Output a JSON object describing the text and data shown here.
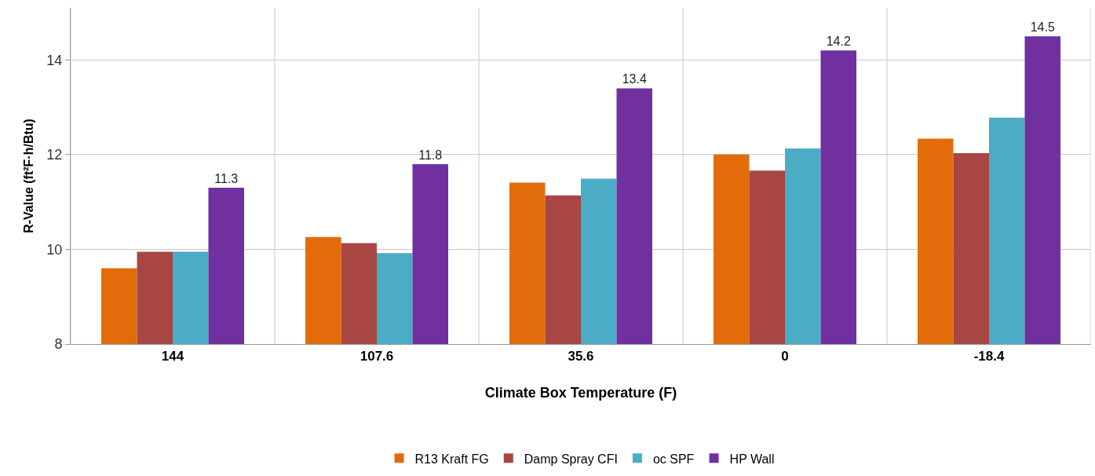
{
  "chart_data": {
    "type": "bar",
    "xlabel": "Climate Box Temperature (F)",
    "ylabel": "R-Value (ft²F·h/Btu)",
    "categories": [
      "144",
      "107.6",
      "35.6",
      "0",
      "-18.4"
    ],
    "series": [
      {
        "name": "R13 Kraft FG",
        "color": "#e36c0a",
        "values": [
          9.6,
          10.26,
          11.41,
          12.0,
          12.34
        ]
      },
      {
        "name": "Damp Spray CFI",
        "color": "#a84644",
        "values": [
          9.95,
          10.13,
          11.14,
          11.66,
          12.03
        ]
      },
      {
        "name": "oc SPF",
        "color": "#4bacc6",
        "values": [
          9.95,
          9.92,
          11.49,
          12.13,
          12.78
        ]
      },
      {
        "name": "HP Wall",
        "color": "#7030a0",
        "values": [
          11.3,
          11.8,
          13.4,
          14.2,
          14.5
        ],
        "value_labels": [
          "11.3",
          "11.8",
          "13.4",
          "14.2",
          "14.5"
        ]
      }
    ],
    "ylim": [
      8,
      15.1
    ],
    "yticks": [
      8,
      10,
      12,
      14
    ],
    "grid": true,
    "legend": "bottom"
  }
}
